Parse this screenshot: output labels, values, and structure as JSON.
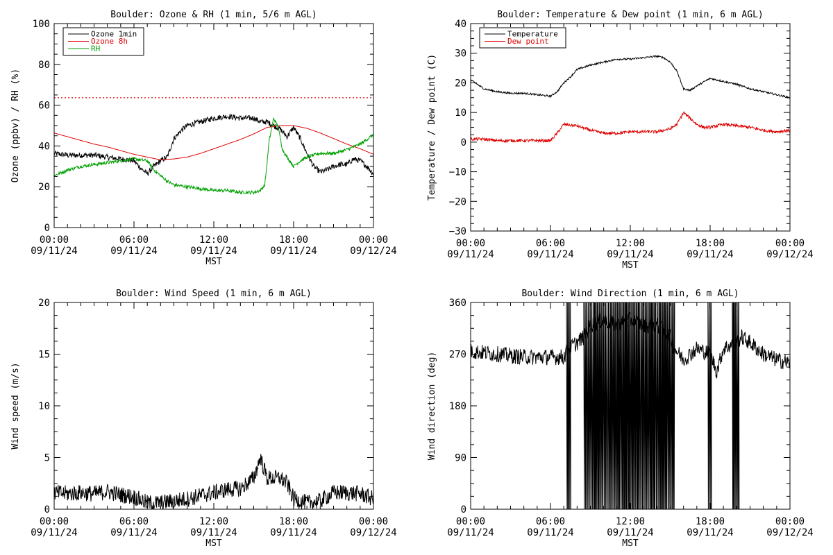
{
  "chart_data": [
    {
      "type": "line",
      "title": "Boulder: Ozone & RH (1 min, 5/6 m AGL)",
      "xlabel": "MST",
      "ylabel": "Ozone (ppbv) / RH (%)",
      "xlim": [
        "09/11/24 00:00",
        "09/12/24 00:00"
      ],
      "ylim": [
        0,
        110
      ],
      "yticks": [
        "0",
        "20",
        "40",
        "60",
        "80",
        "100"
      ],
      "xticks": [
        {
          "time": "00:00",
          "date": "09/11/24"
        },
        {
          "time": "06:00",
          "date": "09/11/24"
        },
        {
          "time": "12:00",
          "date": "09/11/24"
        },
        {
          "time": "18:00",
          "date": "09/11/24"
        },
        {
          "time": "00:00",
          "date": "09/12/24"
        }
      ],
      "legend_position": "top-left",
      "reference_lines": [
        {
          "y": 70,
          "style": "dotted",
          "color": "#dd0000"
        }
      ],
      "series": [
        {
          "name": "Ozone 1min",
          "color": "#000000",
          "noise": 1.5,
          "x": [
            "00:00",
            "01:00",
            "02:00",
            "03:00",
            "04:00",
            "05:00",
            "06:00",
            "06:30",
            "07:00",
            "07:30",
            "08:00",
            "08:30",
            "09:00",
            "09:30",
            "10:00",
            "11:00",
            "12:00",
            "13:00",
            "14:00",
            "15:00",
            "15:30",
            "16:00",
            "16:30",
            "17:00",
            "17:30",
            "18:00",
            "18:30",
            "19:00",
            "19:30",
            "20:00",
            "20:30",
            "21:00",
            "21:30",
            "22:00",
            "22:30",
            "23:00",
            "23:30",
            "24:00"
          ],
          "values": [
            40,
            39,
            39,
            39,
            38,
            37,
            36,
            32,
            29,
            33,
            36,
            38,
            48,
            52,
            55,
            57,
            59,
            60,
            59,
            59,
            57,
            57,
            55,
            53,
            49,
            54,
            48,
            40,
            33,
            30,
            31,
            33,
            34,
            34,
            37,
            36,
            33,
            29
          ]
        },
        {
          "name": "Ozone 8h",
          "color": "#dd0000",
          "noise": 0,
          "x": [
            "00:00",
            "01:00",
            "02:00",
            "03:00",
            "04:00",
            "05:00",
            "06:00",
            "07:00",
            "08:00",
            "09:00",
            "10:00",
            "11:00",
            "12:00",
            "13:00",
            "14:00",
            "15:00",
            "16:00",
            "17:00",
            "18:00",
            "19:00",
            "20:00",
            "21:00",
            "22:00",
            "23:00",
            "24:00"
          ],
          "values": [
            51,
            49,
            47,
            45,
            43.5,
            41.5,
            39.5,
            38,
            36.5,
            37,
            38,
            40,
            42.5,
            45,
            47.5,
            50.5,
            54,
            55,
            55,
            53.5,
            51,
            48,
            45,
            42.5,
            39.5
          ]
        },
        {
          "name": "RH",
          "color": "#00a000",
          "noise": 0.9,
          "x": [
            "00:00",
            "01:00",
            "02:00",
            "03:00",
            "04:00",
            "05:00",
            "06:00",
            "07:00",
            "07:30",
            "08:00",
            "08:30",
            "09:00",
            "10:00",
            "11:00",
            "12:00",
            "13:00",
            "14:00",
            "15:00",
            "15:30",
            "15:50",
            "16:10",
            "16:30",
            "16:50",
            "17:10",
            "17:30",
            "18:00",
            "18:30",
            "19:00",
            "20:00",
            "21:00",
            "22:00",
            "23:00",
            "24:00"
          ],
          "values": [
            28,
            31,
            33,
            34,
            35,
            36,
            37,
            36,
            31,
            28,
            25,
            23,
            22,
            21,
            20,
            20,
            19,
            19,
            20,
            23,
            47,
            59,
            54,
            42,
            38,
            33,
            36,
            38,
            40,
            40,
            42,
            45,
            50
          ]
        }
      ]
    },
    {
      "type": "line",
      "title": "Boulder: Temperature & Dew point (1 min, 6 m AGL)",
      "xlabel": "MST",
      "ylabel": "Temperature / Dew point (C)",
      "xlim": [
        "09/11/24 00:00",
        "09/12/24 00:00"
      ],
      "ylim": [
        -30,
        40
      ],
      "yticks": [
        "−30",
        "−20",
        "−10",
        "0",
        "10",
        "20",
        "30",
        "40"
      ],
      "xticks": [
        {
          "time": "00:00",
          "date": "09/11/24"
        },
        {
          "time": "06:00",
          "date": "09/11/24"
        },
        {
          "time": "12:00",
          "date": "09/11/24"
        },
        {
          "time": "18:00",
          "date": "09/11/24"
        },
        {
          "time": "00:00",
          "date": "09/12/24"
        }
      ],
      "legend_position": "top-left",
      "series": [
        {
          "name": "Temperature",
          "color": "#000000",
          "noise": 0.3,
          "x": [
            "00:00",
            "01:00",
            "02:00",
            "03:00",
            "04:00",
            "05:00",
            "06:00",
            "06:30",
            "07:00",
            "07:30",
            "08:00",
            "09:00",
            "10:00",
            "11:00",
            "12:00",
            "13:00",
            "14:00",
            "14:30",
            "15:00",
            "15:30",
            "16:00",
            "16:30",
            "17:00",
            "18:00",
            "19:00",
            "20:00",
            "21:00",
            "22:00",
            "23:00",
            "24:00"
          ],
          "values": [
            21,
            18,
            17,
            16.5,
            16.5,
            16,
            15.5,
            17,
            20,
            22,
            24.5,
            26,
            27,
            28,
            28,
            28.5,
            29,
            28.5,
            27,
            24,
            18,
            17.5,
            19,
            21.5,
            20.5,
            19.5,
            18,
            17,
            16,
            15
          ]
        },
        {
          "name": "Dew point",
          "color": "#dd0000",
          "noise": 0.5,
          "x": [
            "00:00",
            "01:00",
            "02:00",
            "03:00",
            "04:00",
            "05:00",
            "06:00",
            "06:30",
            "07:00",
            "08:00",
            "09:00",
            "10:00",
            "11:00",
            "12:00",
            "13:00",
            "14:00",
            "15:00",
            "15:30",
            "16:00",
            "16:30",
            "17:00",
            "17:30",
            "18:00",
            "19:00",
            "20:00",
            "21:00",
            "22:00",
            "23:00",
            "24:00"
          ],
          "values": [
            1,
            1,
            0.5,
            0.5,
            0.5,
            0.5,
            0.5,
            3,
            6,
            5.5,
            4,
            3,
            3,
            3.5,
            3.5,
            3.5,
            4.5,
            6,
            10,
            8,
            6,
            5,
            5,
            6,
            5.5,
            5,
            4,
            3.5,
            4
          ]
        }
      ]
    },
    {
      "type": "line",
      "title": "Boulder: Wind Speed (1 min, 6 m AGL)",
      "xlabel": "MST",
      "ylabel": "Wind speed (m/s)",
      "xlim": [
        "09/11/24 00:00",
        "09/12/24 00:00"
      ],
      "ylim": [
        0,
        20
      ],
      "yticks": [
        "0",
        "5",
        "10",
        "15",
        "20"
      ],
      "xticks": [
        {
          "time": "00:00",
          "date": "09/11/24"
        },
        {
          "time": "06:00",
          "date": "09/11/24"
        },
        {
          "time": "12:00",
          "date": "09/11/24"
        },
        {
          "time": "18:00",
          "date": "09/11/24"
        },
        {
          "time": "00:00",
          "date": "09/12/24"
        }
      ],
      "series": [
        {
          "color": "#000000",
          "noise": 0.8,
          "x": [
            "00:00",
            "01:00",
            "02:00",
            "03:00",
            "04:00",
            "05:00",
            "06:00",
            "07:00",
            "08:00",
            "09:00",
            "10:00",
            "11:00",
            "12:00",
            "13:00",
            "14:00",
            "14:30",
            "15:00",
            "15:30",
            "16:00",
            "16:30",
            "17:00",
            "17:30",
            "18:00",
            "18:30",
            "19:00",
            "20:00",
            "21:00",
            "22:00",
            "23:00",
            "24:00"
          ],
          "values": [
            1.6,
            1.5,
            1.6,
            1.5,
            1.7,
            1.4,
            1.2,
            0.6,
            0.6,
            0.8,
            1,
            1.3,
            1.6,
            1.9,
            2,
            2.5,
            3,
            5,
            3,
            3,
            3,
            2.5,
            1,
            0.8,
            0.6,
            0.8,
            1.6,
            1.6,
            1.5,
            1
          ]
        }
      ]
    },
    {
      "type": "line",
      "title": "Boulder: Wind Direction (1 min, 6 m AGL)",
      "xlabel": "MST",
      "ylabel": "Wind direction (deg)",
      "xlim": [
        "09/11/24 00:00",
        "09/12/24 00:00"
      ],
      "ylim": [
        0,
        360
      ],
      "yticks": [
        "0",
        "90",
        "180",
        "270",
        "360"
      ],
      "xticks": [
        {
          "time": "00:00",
          "date": "09/11/24"
        },
        {
          "time": "06:00",
          "date": "09/11/24"
        },
        {
          "time": "12:00",
          "date": "09/11/24"
        },
        {
          "time": "18:00",
          "date": "09/11/24"
        },
        {
          "time": "00:00",
          "date": "09/12/24"
        }
      ],
      "series": [
        {
          "color": "#000000",
          "noise": 14,
          "x": [
            "00:00",
            "02:00",
            "04:00",
            "06:00",
            "07:00",
            "07:20",
            "08:00",
            "08:30",
            "09:00",
            "10:00",
            "11:00",
            "12:00",
            "13:00",
            "14:00",
            "15:00",
            "15:20",
            "16:00",
            "17:00",
            "18:00",
            "18:30",
            "19:00",
            "20:00",
            "20:20",
            "21:00",
            "22:00",
            "23:00",
            "24:00"
          ],
          "values": [
            275,
            270,
            265,
            265,
            265,
            280,
            290,
            300,
            320,
            330,
            320,
            330,
            320,
            320,
            300,
            280,
            260,
            280,
            270,
            240,
            280,
            290,
            300,
            290,
            270,
            260,
            255
          ]
        }
      ],
      "wrap_bands": [
        {
          "from": "07:12",
          "to": "07:30"
        },
        {
          "from": "08:30",
          "to": "15:20"
        },
        {
          "from": "17:50",
          "to": "18:05"
        },
        {
          "from": "19:40",
          "to": "20:10"
        }
      ]
    }
  ]
}
